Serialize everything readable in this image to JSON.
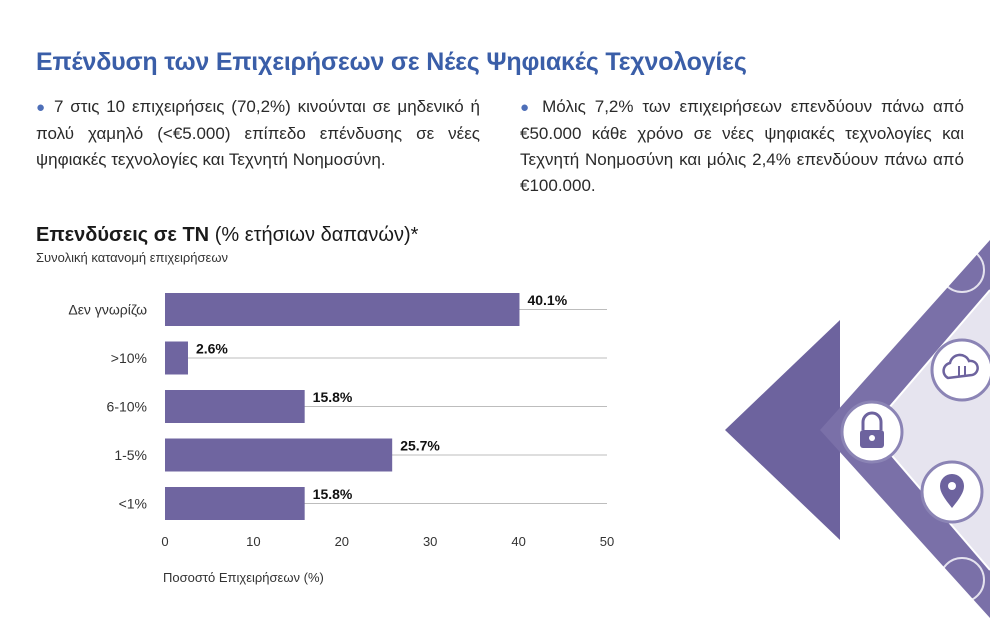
{
  "header": {
    "title": "Επένδυση των Επιχειρήσεων σε Νέες Ψηφιακές Τεχνολογίες"
  },
  "bullets": {
    "left": "7 στις 10 επιχειρήσεις (70,2%) κινούνται σε μηδενικό ή πολύ χαμηλό (<€5.000) επίπεδο επένδυσης σε νέες ψηφιακές τεχνολογίες και Τεχνητή Νοημοσύνη.",
    "right": "Μόλις 7,2% των επιχειρήσεων επενδύουν πάνω από €50.000 κάθε χρόνο σε νέες ψηφιακές τεχνολογίες και Τεχνητή Νοημοσύνη και μόλις 2,4% επενδύουν πάνω από €100.000."
  },
  "colors": {
    "title": "#3a5ea8",
    "bar": "#6f65a0",
    "deco": "#6d639e"
  },
  "chart_data": {
    "type": "bar",
    "orientation": "horizontal",
    "title_bold": "Επενδύσεις σε ΤΝ",
    "title_rest": "(% ετήσιων δαπανών)*",
    "subtitle": "Συνολική κατανομή επιχειρήσεων",
    "xlabel": "Ποσοστό Επιχειρήσεων (%)",
    "categories": [
      "Δεν γνωρίζω",
      ">10%",
      "6-10%",
      "1-5%",
      "<1%"
    ],
    "values": [
      40.1,
      2.6,
      15.8,
      25.7,
      15.8
    ],
    "value_labels": [
      "40.1%",
      "2.6%",
      "15.8%",
      "25.7%",
      "15.8%"
    ],
    "xlim": [
      0,
      50
    ],
    "xticks": [
      0,
      10,
      20,
      30,
      40,
      50
    ],
    "grid": true
  },
  "decoration": {
    "icons": [
      "cloud-transfer-icon",
      "padlock-icon",
      "location-pin-icon"
    ]
  }
}
